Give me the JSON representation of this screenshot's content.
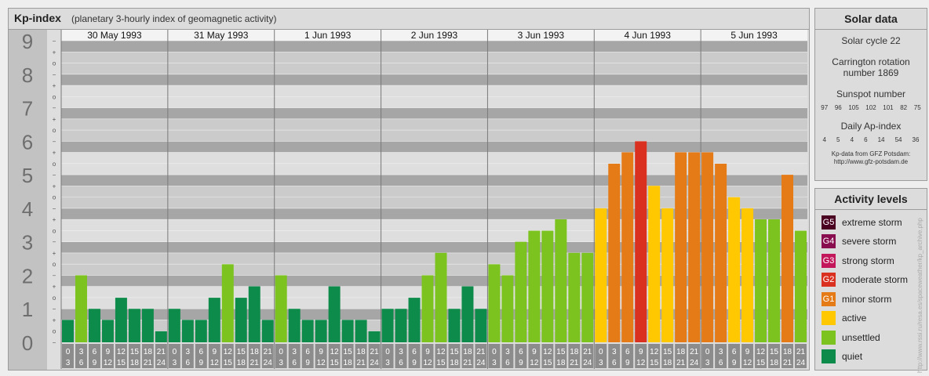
{
  "header": {
    "title": "Kp-index",
    "subtitle": "(planetary 3-hourly index of geomagnetic activity)"
  },
  "chart_data": {
    "type": "bar",
    "title": "Kp-index",
    "subtitle": "(planetary 3-hourly index of geomagnetic activity)",
    "ylim": [
      0,
      9
    ],
    "y_ticks": [
      "0",
      "1",
      "2",
      "3",
      "4",
      "5",
      "6",
      "7",
      "8",
      "9"
    ],
    "y_subticks": [
      "+",
      "−",
      "o"
    ],
    "days": [
      "30 May 1993",
      "31 May 1993",
      "1 Jun 1993",
      "2 Jun 1993",
      "3 Jun 1993",
      "4 Jun 1993",
      "5 Jun 1993"
    ],
    "interval_start": [
      "0",
      "3",
      "6",
      "9",
      "12",
      "15",
      "18",
      "21"
    ],
    "interval_end": [
      "3",
      "6",
      "9",
      "12",
      "15",
      "18",
      "21",
      "24"
    ],
    "values": [
      [
        0.67,
        2.0,
        1.0,
        0.67,
        1.33,
        1.0,
        1.0,
        0.33
      ],
      [
        1.0,
        0.67,
        0.67,
        1.33,
        2.33,
        1.33,
        1.67,
        0.67
      ],
      [
        2.0,
        1.0,
        0.67,
        0.67,
        1.67,
        0.67,
        0.67,
        0.33
      ],
      [
        1.0,
        1.0,
        1.33,
        2.0,
        2.67,
        1.0,
        1.67,
        1.0
      ],
      [
        2.33,
        2.0,
        3.0,
        3.33,
        3.33,
        3.67,
        2.67,
        2.67
      ],
      [
        4.0,
        5.33,
        5.67,
        6.0,
        4.67,
        4.0,
        5.67,
        5.67
      ],
      [
        5.67,
        5.33,
        4.33,
        4.0,
        3.67,
        3.67,
        5.0,
        3.33
      ]
    ],
    "levels_colors": {
      "quiet": "#0d8b4a",
      "unsettled": "#7cc31f",
      "active": "#ffc800",
      "G1": "#e57b17",
      "G2": "#d93020",
      "G3": "#c2185b",
      "G4": "#880e4f",
      "G5": "#4a0020"
    },
    "grid": true,
    "legend_position": "right"
  },
  "solar": {
    "title": "Solar data",
    "cycle": "Solar cycle 22",
    "carrington_1": "Carrington rotation",
    "carrington_2": "number 1869",
    "sunspot_title": "Sunspot number",
    "sunspot_values": [
      "97",
      "96",
      "105",
      "102",
      "101",
      "82",
      "75"
    ],
    "ap_title": "Daily Ap-index",
    "ap_values": [
      "4",
      "5",
      "4",
      "6",
      "14",
      "54",
      "36"
    ],
    "credit_1": "Kp-data from GFZ Potsdam:",
    "credit_2": "http://www.gfz-potsdam.de"
  },
  "levels": {
    "title": "Activity levels",
    "items": [
      {
        "code": "G5",
        "label": "extreme storm",
        "color": "#4a0020"
      },
      {
        "code": "G4",
        "label": "severe storm",
        "color": "#880e4f"
      },
      {
        "code": "G3",
        "label": "strong storm",
        "color": "#c2185b"
      },
      {
        "code": "G2",
        "label": "moderate storm",
        "color": "#d93020"
      },
      {
        "code": "G1",
        "label": "minor storm",
        "color": "#e57b17"
      },
      {
        "code": "",
        "label": "active",
        "color": "#ffc800"
      },
      {
        "code": "",
        "label": "unsettled",
        "color": "#7cc31f"
      },
      {
        "code": "",
        "label": "quiet",
        "color": "#0d8b4a"
      }
    ]
  },
  "watermark": "http://www.rssi.ru/resa.es/spaceweather/kp_archive.php"
}
